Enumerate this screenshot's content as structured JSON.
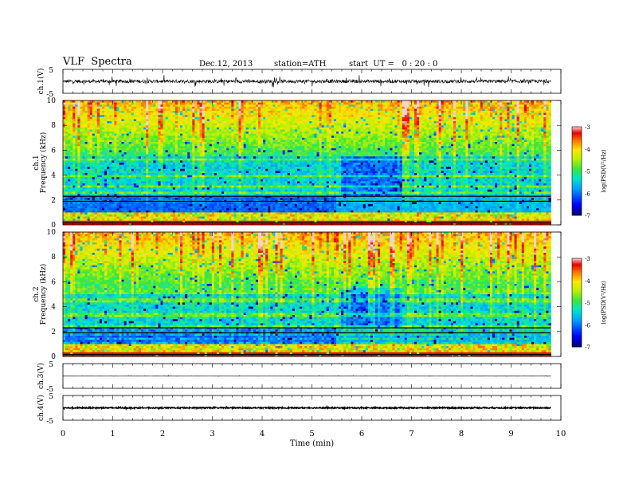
{
  "header": {
    "title": "VLF  Spectra",
    "date": "Dec.12, 2013",
    "station": "station=ATH",
    "start": "start  UT =   0 : 20 : 0"
  },
  "chart_data": [
    {
      "type": "line",
      "name": "ch1-waveform",
      "ylabel": "ch.1(V)",
      "ylim": [
        -5,
        5
      ],
      "yticks": [
        "5",
        "-5"
      ],
      "xlim": [
        0,
        10
      ],
      "x_end": 9.8,
      "noise_amplitude": 0.7,
      "spike_amplitude": 2.2
    },
    {
      "type": "heatmap",
      "name": "ch1-spectrogram",
      "ylabel": "ch.1\nFrequency (kHz)",
      "ylim": [
        0,
        10
      ],
      "yticks": [
        "0",
        "2",
        "4",
        "6",
        "8",
        "10"
      ],
      "xlim": [
        0,
        10
      ],
      "x_end": 9.8,
      "colorbar": {
        "label": "log(PSD(V²/Hz)",
        "range": [
          -7,
          -3
        ],
        "ticks": [
          "-3",
          "-4",
          "-5",
          "-6",
          "-7"
        ]
      }
    },
    {
      "type": "heatmap",
      "name": "ch2-spectrogram",
      "ylabel": "ch.2\nFrequency (kHz)",
      "ylim": [
        0,
        10
      ],
      "yticks": [
        "0",
        "2",
        "4",
        "6",
        "8",
        "10"
      ],
      "xlim": [
        0,
        10
      ],
      "x_end": 9.8,
      "colorbar": {
        "label": "log(PSD(V²/Hz)",
        "range": [
          -7,
          -3
        ],
        "ticks": [
          "-3",
          "-4",
          "-5",
          "-6",
          "-7"
        ]
      }
    },
    {
      "type": "line",
      "name": "ch3-waveform",
      "ylabel": "ch.3(V)",
      "ylim": [
        -5,
        5
      ],
      "yticks": [
        "5",
        "-5"
      ],
      "xlim": [
        0,
        10
      ],
      "x_end": 9.8,
      "noise_amplitude": 0.05,
      "spike_amplitude": 0.2
    },
    {
      "type": "line",
      "name": "ch4-waveform",
      "ylabel": "ch.4(V)",
      "ylim": [
        -5,
        5
      ],
      "yticks": [
        "5",
        "-5"
      ],
      "xlim": [
        0,
        10
      ],
      "x_end": 9.8,
      "noise_amplitude": 0.25,
      "spike_amplitude": 0.3
    }
  ],
  "xaxis": {
    "label": "Time  (min)",
    "ticks": [
      "0",
      "1",
      "2",
      "3",
      "4",
      "5",
      "6",
      "7",
      "8",
      "9",
      "10"
    ]
  }
}
